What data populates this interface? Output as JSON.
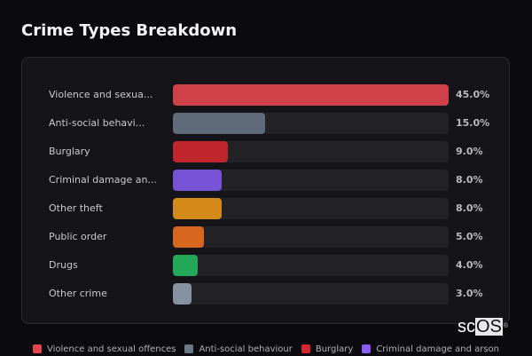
{
  "header": {
    "title": "Crime Types Breakdown"
  },
  "logo": {
    "text_plain": "sc",
    "text_box": "OS",
    "mark": "®"
  },
  "chart_data": {
    "type": "bar",
    "orientation": "horizontal",
    "title": "Crime Types Breakdown",
    "xlabel": "",
    "ylabel": "",
    "xlim": [
      0,
      45
    ],
    "grid": false,
    "legend_position": "bottom",
    "categories": [
      "Violence and sexual offences",
      "Anti-social behaviour",
      "Burglary",
      "Criminal damage and arson",
      "Other theft",
      "Public order",
      "Drugs",
      "Other crime"
    ],
    "values": [
      45.0,
      15.0,
      9.0,
      8.0,
      8.0,
      5.0,
      4.0,
      3.0
    ],
    "unit": "%"
  },
  "rows": [
    {
      "label": "Violence and sexua...",
      "full_label": "Violence and sexual offences",
      "value": 45.0,
      "value_text": "45.0%",
      "color": "#d04048"
    },
    {
      "label": "Anti-social behavi...",
      "full_label": "Anti-social behaviour",
      "value": 15.0,
      "value_text": "15.0%",
      "color": "#5f6b7a"
    },
    {
      "label": "Burglary",
      "full_label": "Burglary",
      "value": 9.0,
      "value_text": "9.0%",
      "color": "#c0272d"
    },
    {
      "label": "Criminal damage an...",
      "full_label": "Criminal damage and arson",
      "value": 8.0,
      "value_text": "8.0%",
      "color": "#7653d6"
    },
    {
      "label": "Other theft",
      "full_label": "Other theft",
      "value": 8.0,
      "value_text": "8.0%",
      "color": "#d38a18"
    },
    {
      "label": "Public order",
      "full_label": "Public order",
      "value": 5.0,
      "value_text": "5.0%",
      "color": "#d7661e"
    },
    {
      "label": "Drugs",
      "full_label": "Drugs",
      "value": 4.0,
      "value_text": "4.0%",
      "color": "#22a957"
    },
    {
      "label": "Other crime",
      "full_label": "Other crime",
      "value": 3.0,
      "value_text": "3.0%",
      "color": "#8691a1"
    }
  ],
  "legend": [
    {
      "label": "Violence and sexual offences",
      "color": "#e5454d"
    },
    {
      "label": "Anti-social behaviour",
      "color": "#6b7789"
    },
    {
      "label": "Burglary",
      "color": "#d4262e"
    },
    {
      "label": "Criminal damage and arson",
      "color": "#8a5cf0"
    }
  ]
}
